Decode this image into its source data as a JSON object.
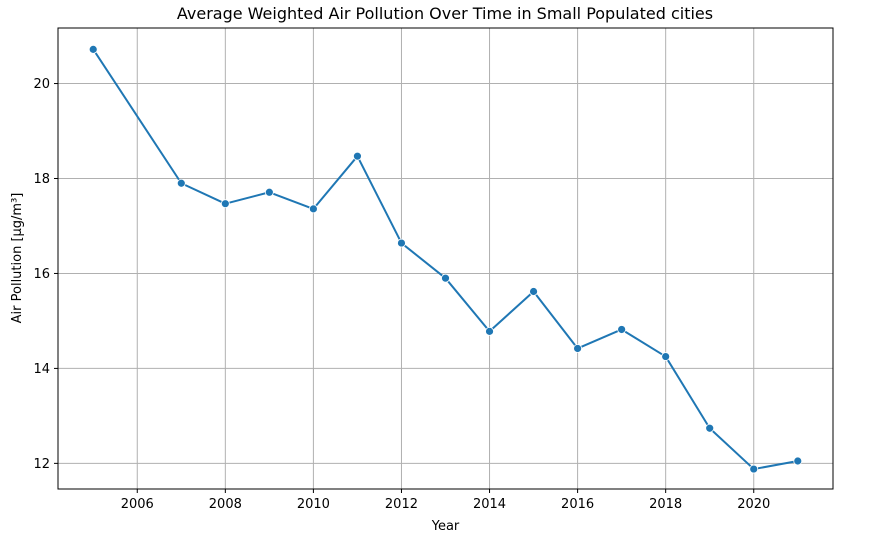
{
  "chart_data": {
    "type": "line",
    "title": "Average Weighted Air Pollution Over Time in Small Populated cities",
    "xlabel": "Year",
    "ylabel": "Air Pollution [µg/m³]",
    "x": [
      2005,
      2007,
      2008,
      2009,
      2010,
      2011,
      2012,
      2013,
      2014,
      2015,
      2016,
      2017,
      2018,
      2019,
      2020,
      2021
    ],
    "series": [
      {
        "values": [
          20.72,
          17.9,
          17.47,
          17.71,
          17.36,
          18.47,
          16.64,
          15.9,
          14.78,
          15.62,
          14.42,
          14.82,
          14.25,
          12.74,
          11.88,
          12.05
        ]
      }
    ],
    "xlim": [
      2004.2,
      2021.8
    ],
    "ylim": [
      11.46,
      21.17
    ],
    "xticks": [
      2006,
      2008,
      2010,
      2012,
      2014,
      2016,
      2018,
      2020
    ],
    "xtick_labels": [
      "2006",
      "2008",
      "2010",
      "2012",
      "2014",
      "2016",
      "2018",
      "2020"
    ],
    "yticks": [
      12,
      14,
      16,
      18,
      20
    ],
    "ytick_labels": [
      "12",
      "14",
      "16",
      "18",
      "20"
    ],
    "grid": true,
    "legend": "none",
    "line_color": "#1f77b4",
    "marker": "circle"
  }
}
